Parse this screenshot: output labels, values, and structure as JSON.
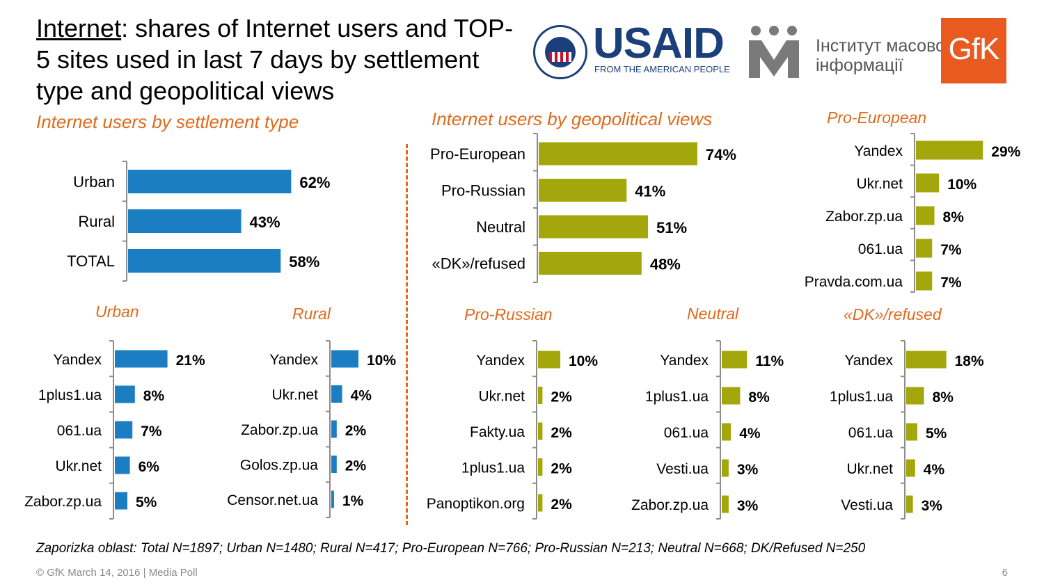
{
  "header": {
    "title_underlined": "Internet",
    "title_rest": ": shares of Internet users and TOP-5 sites used in last 7 days by settlement type and geopolitical views"
  },
  "logos": {
    "usaid": "USAID",
    "usaid_tagline": "FROM THE AMERICAN PEOPLE",
    "imi_line1": "Інститут масової",
    "imi_line2": "інформації",
    "gfk": "GfK"
  },
  "colors": {
    "blue": "#1B7EC2",
    "olive": "#A3A70B",
    "orange": "#E06A1B"
  },
  "section_titles": {
    "settlement": "Internet users by settlement type",
    "geopolitical": "Internet users by geopolitical views"
  },
  "chart_data": [
    {
      "id": "settlement",
      "type": "bar",
      "orientation": "horizontal",
      "color": "#1B7EC2",
      "title": "Internet users by settlement type",
      "categories": [
        "Urban",
        "Rural",
        "TOTAL"
      ],
      "values": [
        62,
        43,
        58
      ],
      "unit": "%"
    },
    {
      "id": "geopolitical",
      "type": "bar",
      "orientation": "horizontal",
      "color": "#A3A70B",
      "title": "Internet users by geopolitical views",
      "categories": [
        "Pro-European",
        "Pro-Russian",
        "Neutral",
        "«DK»/refused"
      ],
      "values": [
        74,
        41,
        51,
        48
      ],
      "unit": "%"
    },
    {
      "id": "pro-european-sites",
      "type": "bar",
      "orientation": "horizontal",
      "color": "#A3A70B",
      "title": "Pro-European",
      "categories": [
        "Yandex",
        "Ukr.net",
        "Zabor.zp.ua",
        "061.ua",
        "Pravda.com.ua"
      ],
      "values": [
        29,
        10,
        8,
        7,
        7
      ],
      "unit": "%"
    },
    {
      "id": "urban-sites",
      "type": "bar",
      "orientation": "horizontal",
      "color": "#1B7EC2",
      "title": "Urban",
      "categories": [
        "Yandex",
        "1plus1.ua",
        "061.ua",
        "Ukr.net",
        "Zabor.zp.ua"
      ],
      "values": [
        21,
        8,
        7,
        6,
        5
      ],
      "unit": "%"
    },
    {
      "id": "rural-sites",
      "type": "bar",
      "orientation": "horizontal",
      "color": "#1B7EC2",
      "title": "Rural",
      "categories": [
        "Yandex",
        "Ukr.net",
        "Zabor.zp.ua",
        "Golos.zp.ua",
        "Censor.net.ua"
      ],
      "values": [
        10,
        4,
        2,
        2,
        1
      ],
      "unit": "%"
    },
    {
      "id": "pro-russian-sites",
      "type": "bar",
      "orientation": "horizontal",
      "color": "#A3A70B",
      "title": "Pro-Russian",
      "categories": [
        "Yandex",
        "Ukr.net",
        "Fakty.ua",
        "1plus1.ua",
        "Panoptikon.org"
      ],
      "values": [
        10,
        2,
        2,
        2,
        2
      ],
      "unit": "%"
    },
    {
      "id": "neutral-sites",
      "type": "bar",
      "orientation": "horizontal",
      "color": "#A3A70B",
      "title": "Neutral",
      "categories": [
        "Yandex",
        "1plus1.ua",
        "061.ua",
        "Vesti.ua",
        "Zabor.zp.ua"
      ],
      "values": [
        11,
        8,
        4,
        3,
        3
      ],
      "unit": "%"
    },
    {
      "id": "dk-refused-sites",
      "type": "bar",
      "orientation": "horizontal",
      "color": "#A3A70B",
      "title": "«DK»/refused",
      "categories": [
        "Yandex",
        "1plus1.ua",
        "061.ua",
        "Ukr.net",
        "Vesti.ua"
      ],
      "values": [
        18,
        8,
        5,
        4,
        3
      ],
      "unit": "%"
    }
  ],
  "footnote": "Zaporizka oblast: Total N=1897; Urban N=1480; Rural N=417; Pro-European N=766; Pro-Russian N=213; Neutral N=668; DK/Refused N=250",
  "footer": "© GfK March 14, 2016 | Media Poll",
  "page_number": "6"
}
